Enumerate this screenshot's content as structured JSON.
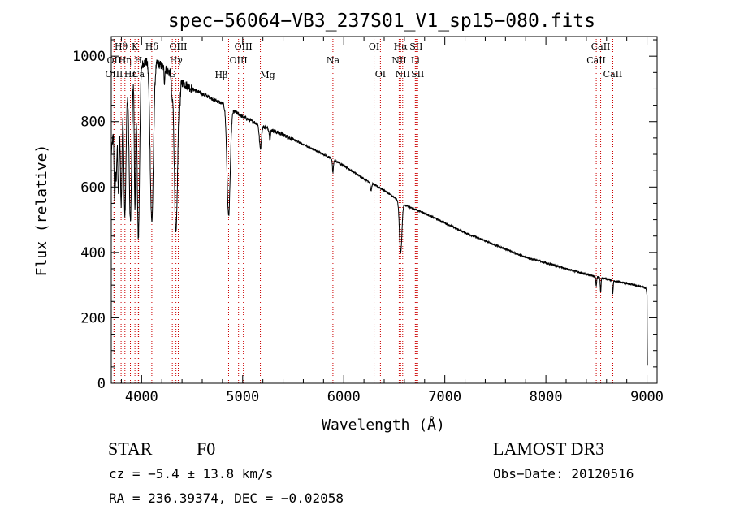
{
  "chart_data": {
    "type": "line",
    "title": "spec−56064−VB3_237S01_V1_sp15−080.fits",
    "xlabel": "Wavelength (Å)",
    "ylabel": "Flux (relative)",
    "xlim": [
      3700,
      9100
    ],
    "ylim": [
      0,
      1060
    ],
    "xticks": [
      4000,
      5000,
      6000,
      7000,
      8000,
      9000
    ],
    "xtick_labels": [
      "4000",
      "5000",
      "6000",
      "7000",
      "8000",
      "9000"
    ],
    "yticks": [
      0,
      200,
      400,
      600,
      800,
      1000
    ],
    "ytick_labels": [
      "0",
      "200",
      "400",
      "600",
      "800",
      "1000"
    ],
    "series": [
      {
        "name": "spectrum",
        "continuum": [
          [
            3700,
            700
          ],
          [
            3730,
            800
          ],
          [
            3760,
            850
          ],
          [
            3800,
            880
          ],
          [
            3850,
            900
          ],
          [
            3900,
            930
          ],
          [
            3950,
            960
          ],
          [
            4000,
            975
          ],
          [
            4050,
            985
          ],
          [
            4100,
            985
          ],
          [
            4150,
            980
          ],
          [
            4200,
            970
          ],
          [
            4300,
            945
          ],
          [
            4400,
            920
          ],
          [
            4500,
            900
          ],
          [
            4600,
            885
          ],
          [
            4700,
            870
          ],
          [
            4800,
            855
          ],
          [
            4900,
            835
          ],
          [
            5000,
            815
          ],
          [
            5100,
            800
          ],
          [
            5200,
            785
          ],
          [
            5400,
            760
          ],
          [
            5600,
            730
          ],
          [
            5800,
            700
          ],
          [
            6000,
            665
          ],
          [
            6200,
            625
          ],
          [
            6400,
            590
          ],
          [
            6600,
            545
          ],
          [
            6800,
            520
          ],
          [
            7000,
            490
          ],
          [
            7200,
            460
          ],
          [
            7400,
            435
          ],
          [
            7600,
            410
          ],
          [
            7800,
            385
          ],
          [
            8000,
            368
          ],
          [
            8200,
            350
          ],
          [
            8400,
            333
          ],
          [
            8600,
            318
          ],
          [
            8800,
            305
          ],
          [
            8950,
            295
          ],
          [
            8990,
            290
          ],
          [
            9000,
            270
          ],
          [
            9005,
            0
          ]
        ],
        "absorption_lines": [
          {
            "center": 3734,
            "depth": 250,
            "width": 6
          },
          {
            "center": 3750,
            "depth": 200,
            "width": 6
          },
          {
            "center": 3771,
            "depth": 280,
            "width": 7
          },
          {
            "center": 3798,
            "depth": 330,
            "width": 8
          },
          {
            "center": 3835,
            "depth": 380,
            "width": 10
          },
          {
            "center": 3889,
            "depth": 430,
            "width": 12
          },
          {
            "center": 3934,
            "depth": 420,
            "width": 6
          },
          {
            "center": 3968,
            "depth": 520,
            "width": 12
          },
          {
            "center": 4101,
            "depth": 490,
            "width": 16
          },
          {
            "center": 4226,
            "depth": 40,
            "width": 4
          },
          {
            "center": 4300,
            "depth": 60,
            "width": 5
          },
          {
            "center": 4340,
            "depth": 480,
            "width": 16
          },
          {
            "center": 4383,
            "depth": 50,
            "width": 4
          },
          {
            "center": 4861,
            "depth": 330,
            "width": 16
          },
          {
            "center": 5175,
            "depth": 70,
            "width": 10
          },
          {
            "center": 5270,
            "depth": 30,
            "width": 6
          },
          {
            "center": 5893,
            "depth": 40,
            "width": 5
          },
          {
            "center": 6270,
            "depth": 25,
            "width": 6
          },
          {
            "center": 6563,
            "depth": 155,
            "width": 12
          },
          {
            "center": 8498,
            "depth": 30,
            "width": 4
          },
          {
            "center": 8542,
            "depth": 45,
            "width": 4
          },
          {
            "center": 8662,
            "depth": 40,
            "width": 4
          }
        ]
      }
    ],
    "line_markers": [
      {
        "label": "Hθ",
        "wavelength": 3797,
        "row": 0
      },
      {
        "label": "OII",
        "wavelength": 3727,
        "row": 1
      },
      {
        "label": "OIII",
        "wavelength": 3727,
        "row": 2
      },
      {
        "label": "K",
        "wavelength": 3934,
        "row": 0
      },
      {
        "label": "Hδ",
        "wavelength": 4101,
        "row": 0
      },
      {
        "label": "Hη",
        "wavelength": 3835,
        "row": 1
      },
      {
        "label": "Hε",
        "wavelength": 3889,
        "row": 2
      },
      {
        "label": "H",
        "wavelength": 3968,
        "row": 1
      },
      {
        "label": "Ca",
        "wavelength": 3970,
        "row": 2
      },
      {
        "label": "OIII",
        "wavelength": 4363,
        "row": 0
      },
      {
        "label": "Hγ",
        "wavelength": 4340,
        "row": 1
      },
      {
        "label": "G",
        "wavelength": 4304,
        "row": 2
      },
      {
        "label": "OIII",
        "wavelength": 5007,
        "row": 0
      },
      {
        "label": "OIII",
        "wavelength": 4959,
        "row": 1
      },
      {
        "label": "Hβ",
        "wavelength": 4861,
        "row": 3
      },
      {
        "label": "Mg",
        "wavelength": 5175,
        "row": 3
      },
      {
        "label": "Na",
        "wavelength": 5893,
        "row": 1
      },
      {
        "label": "OI",
        "wavelength": 6300,
        "row": 0
      },
      {
        "label": "OI",
        "wavelength": 6363,
        "row": 2
      },
      {
        "label": "Hα",
        "wavelength": 6563,
        "row": 0
      },
      {
        "label": "NII",
        "wavelength": 6548,
        "row": 1
      },
      {
        "label": "NII",
        "wavelength": 6583,
        "row": 2
      },
      {
        "label": "SII",
        "wavelength": 6716,
        "row": 0
      },
      {
        "label": "Li",
        "wavelength": 6708,
        "row": 1
      },
      {
        "label": "SII",
        "wavelength": 6731,
        "row": 2
      },
      {
        "label": "CaII",
        "wavelength": 8542,
        "row": 0
      },
      {
        "label": "CaII",
        "wavelength": 8498,
        "row": 1
      },
      {
        "label": "CaII",
        "wavelength": 8662,
        "row": 2
      }
    ]
  },
  "info": {
    "object_class": "STAR",
    "subclass": "F0",
    "survey": "LAMOST DR3",
    "cz": "cz = −5.4 ± 13.8 km/s",
    "obs_date": "Obs−Date: 20120516",
    "coords": "RA = 236.39374, DEC =  −0.02058"
  },
  "colors": {
    "line": "#000000",
    "marker": "#cc0000",
    "background": "#ffffff"
  }
}
